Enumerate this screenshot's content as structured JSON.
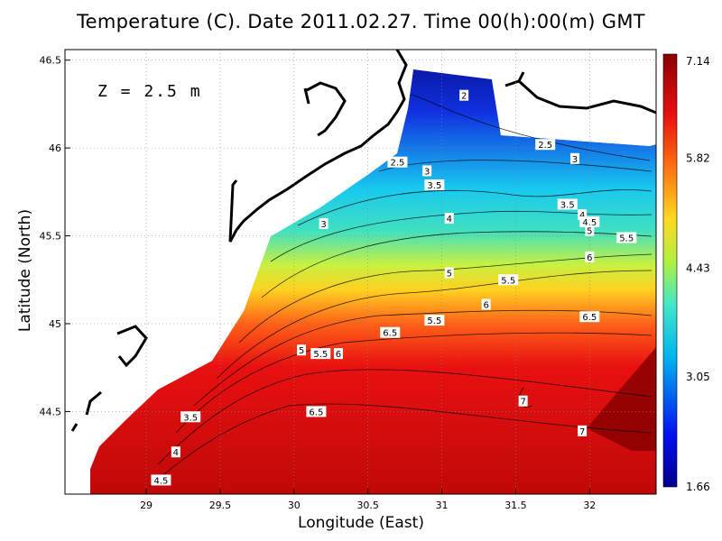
{
  "chart_data": {
    "type": "heatmap",
    "title": "Temperature (C). Date 2011.02.27. Time 00(h):00(m) GMT",
    "xlabel": "Longitude (East)",
    "ylabel": "Latitude (North)",
    "annotation": "Z = 2.5 m",
    "xlim": [
      28.45,
      32.45
    ],
    "ylim": [
      44.03,
      46.56
    ],
    "x_ticks": [
      29,
      29.5,
      30,
      30.5,
      31,
      31.5,
      32
    ],
    "y_ticks": [
      44.5,
      45,
      45.5,
      46,
      46.5
    ],
    "y_tick_labels": [
      "44.5",
      "45",
      "45.5",
      "46",
      "46.5"
    ],
    "grid": true,
    "colorbar": {
      "min": 1.66,
      "max": 7.14,
      "ticks": [
        "7.14",
        "5.82",
        "4.43",
        "3.05",
        "1.66"
      ],
      "colormap": "blue-cyan-yellow-red"
    },
    "contour_labels": [
      {
        "text": "2",
        "x": 31.15,
        "y": 46.3
      },
      {
        "text": "2.5",
        "x": 31.7,
        "y": 46.02
      },
      {
        "text": "2.5",
        "x": 30.7,
        "y": 45.92
      },
      {
        "text": "3",
        "x": 31.9,
        "y": 45.94
      },
      {
        "text": "3",
        "x": 30.9,
        "y": 45.87
      },
      {
        "text": "3.5",
        "x": 30.95,
        "y": 45.79
      },
      {
        "text": "3",
        "x": 30.2,
        "y": 45.57
      },
      {
        "text": "3.5",
        "x": 31.85,
        "y": 45.68
      },
      {
        "text": "4",
        "x": 31.95,
        "y": 45.62
      },
      {
        "text": "4.5",
        "x": 32.0,
        "y": 45.58
      },
      {
        "text": "5",
        "x": 32.0,
        "y": 45.53
      },
      {
        "text": "4",
        "x": 31.05,
        "y": 45.6
      },
      {
        "text": "5.5",
        "x": 32.25,
        "y": 45.49
      },
      {
        "text": "6",
        "x": 32.0,
        "y": 45.38
      },
      {
        "text": "5",
        "x": 31.05,
        "y": 45.29
      },
      {
        "text": "5.5",
        "x": 31.45,
        "y": 45.25
      },
      {
        "text": "6",
        "x": 31.3,
        "y": 45.11
      },
      {
        "text": "6.5",
        "x": 32.0,
        "y": 45.04
      },
      {
        "text": "5.5",
        "x": 30.95,
        "y": 45.02
      },
      {
        "text": "6.5",
        "x": 30.65,
        "y": 44.95
      },
      {
        "text": "5",
        "x": 30.05,
        "y": 44.85
      },
      {
        "text": "5.5",
        "x": 30.18,
        "y": 44.83
      },
      {
        "text": "6",
        "x": 30.3,
        "y": 44.83
      },
      {
        "text": "7",
        "x": 31.55,
        "y": 44.56
      },
      {
        "text": "6.5",
        "x": 30.15,
        "y": 44.5
      },
      {
        "text": "3.5",
        "x": 29.3,
        "y": 44.47
      },
      {
        "text": "7",
        "x": 31.95,
        "y": 44.39
      },
      {
        "text": "4",
        "x": 29.2,
        "y": 44.27
      },
      {
        "text": "4.5",
        "x": 29.1,
        "y": 44.11
      }
    ]
  }
}
